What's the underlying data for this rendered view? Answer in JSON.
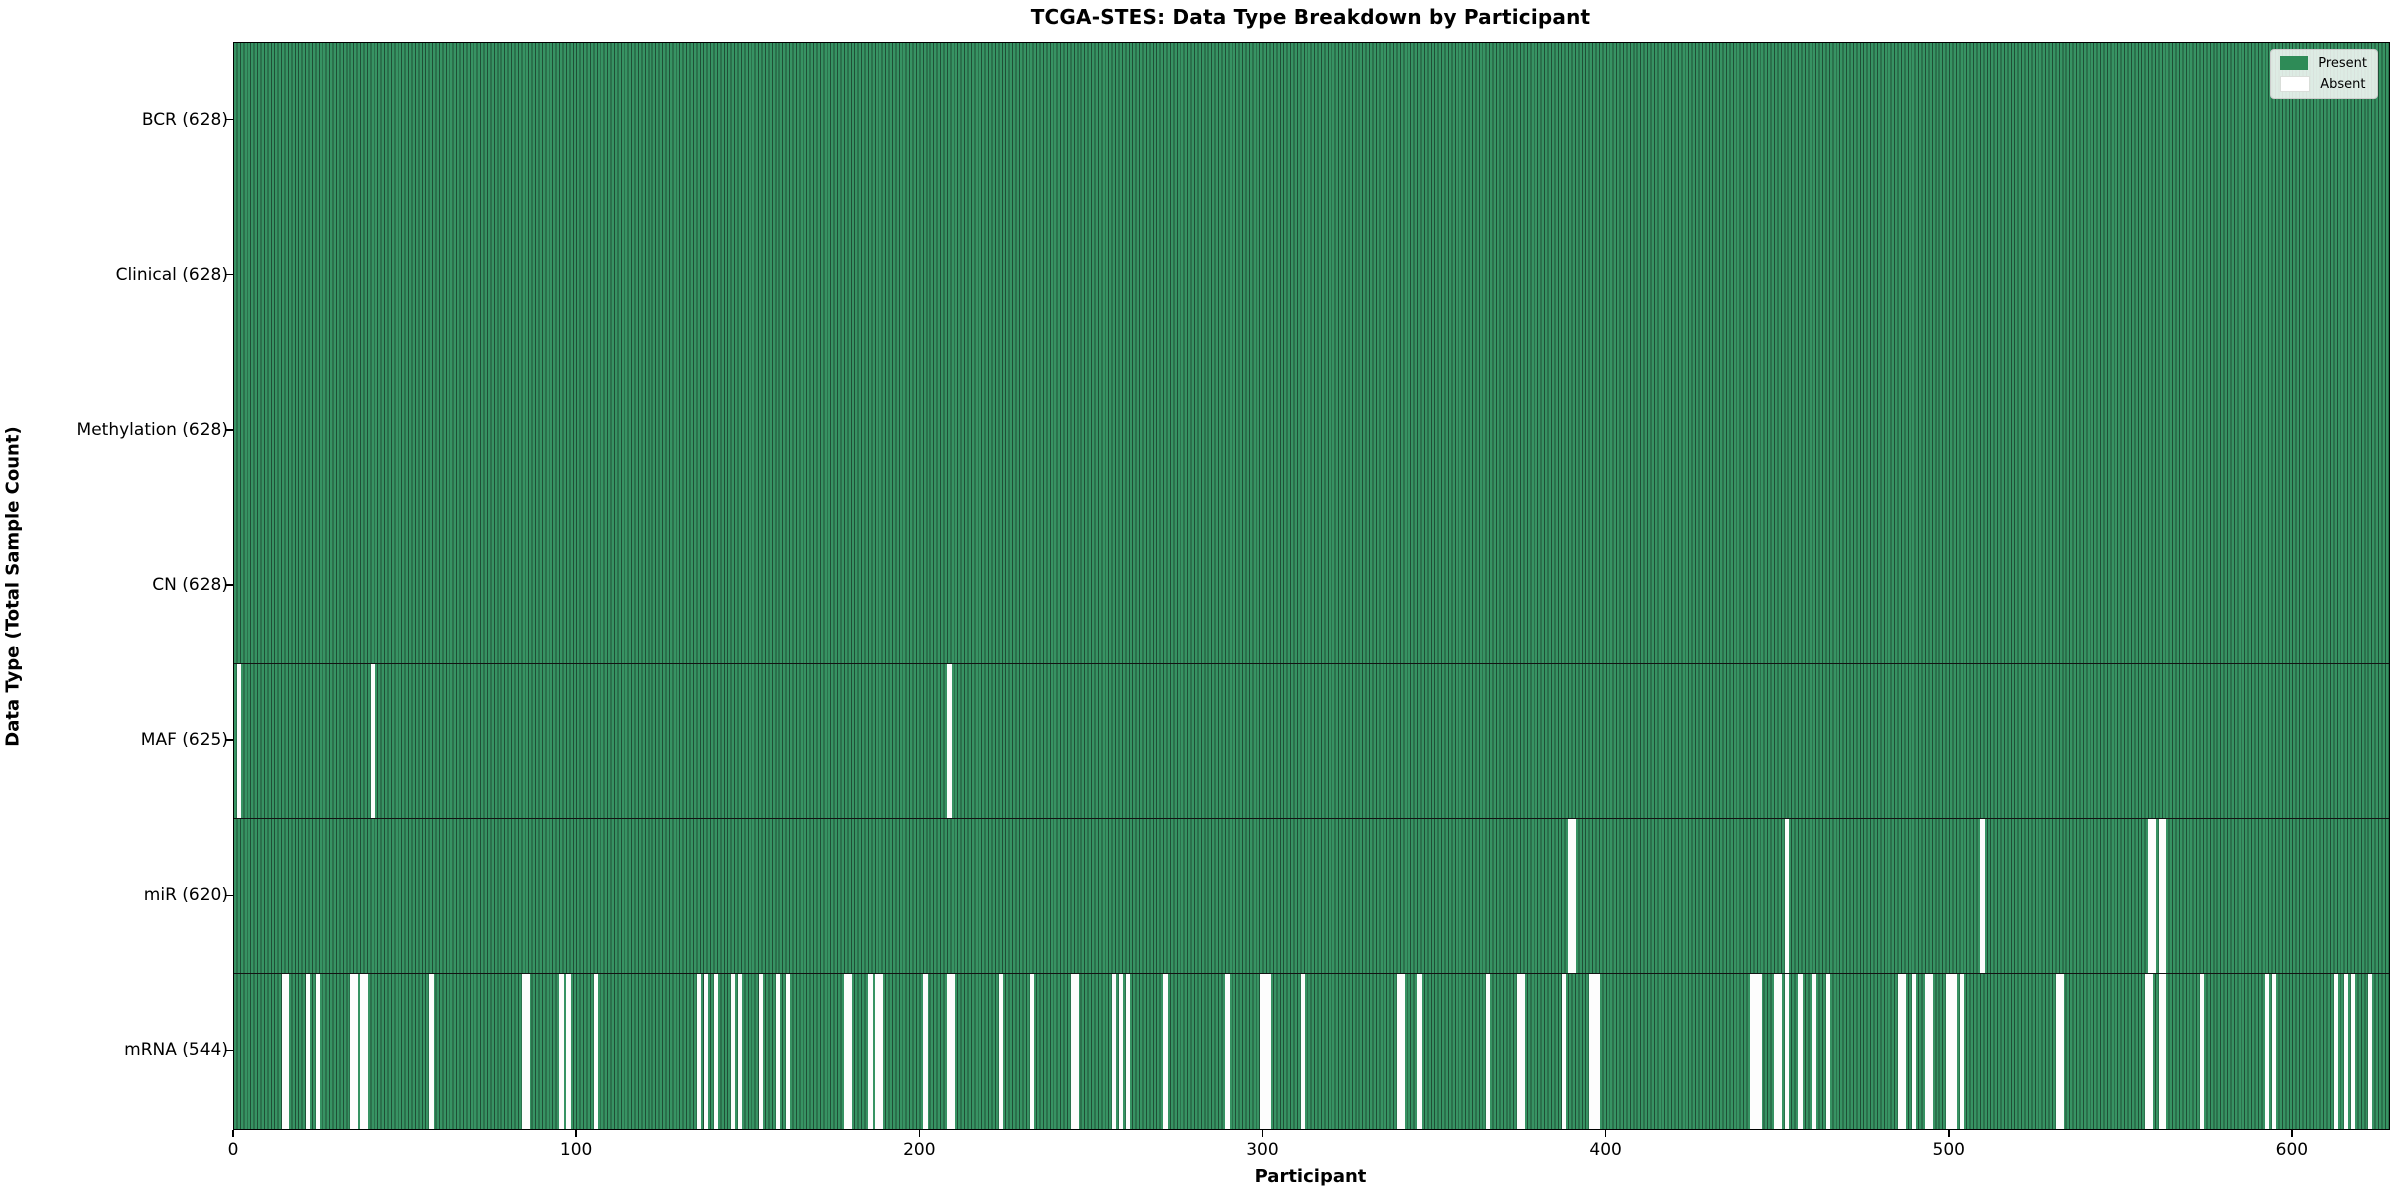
{
  "chart_data": {
    "type": "heatmap",
    "title": "TCGA-STES: Data Type Breakdown by Participant",
    "xlabel": "Participant",
    "ylabel": "Data Type (Total Sample Count)",
    "x_ticks": [
      0,
      100,
      200,
      300,
      400,
      500,
      600
    ],
    "x_max": 628,
    "grid": false,
    "legend": {
      "position": "upper right",
      "entries": [
        {
          "label": "Present",
          "color": "#2e8b57"
        },
        {
          "label": "Absent",
          "color": "#ffffff"
        }
      ]
    },
    "colors": {
      "present_fill": "#379363",
      "present_edge": "#1f4f36",
      "absent": "#fdfdfd",
      "row_divider": "#131313"
    },
    "rows": [
      {
        "label": "BCR (628)",
        "name": "BCR",
        "present_count": 628,
        "absent_ranges": []
      },
      {
        "label": "Clinical (628)",
        "name": "Clinical",
        "present_count": 628,
        "absent_ranges": []
      },
      {
        "label": "Methylation (628)",
        "name": "Methylation",
        "present_count": 628,
        "absent_ranges": []
      },
      {
        "label": "CN (628)",
        "name": "CN",
        "present_count": 628,
        "absent_ranges": []
      },
      {
        "label": "MAF (625)",
        "name": "MAF",
        "present_count": 625,
        "absent_ranges": [
          [
            1,
            1
          ],
          [
            40,
            1
          ],
          [
            208,
            1
          ]
        ]
      },
      {
        "label": "miR (620)",
        "name": "miR",
        "present_count": 620,
        "absent_ranges": [
          [
            389,
            2
          ],
          [
            452,
            1
          ],
          [
            509,
            1
          ],
          [
            558,
            2
          ],
          [
            561,
            2
          ]
        ]
      },
      {
        "label": "mRNA (544)",
        "name": "mRNA",
        "present_count": 544,
        "absent_ranges": [
          [
            14,
            2
          ],
          [
            21,
            1
          ],
          [
            24,
            1
          ],
          [
            34,
            2
          ],
          [
            37,
            2
          ],
          [
            57,
            1
          ],
          [
            84,
            2
          ],
          [
            95,
            1
          ],
          [
            97,
            1
          ],
          [
            105,
            1
          ],
          [
            135,
            1
          ],
          [
            137,
            1
          ],
          [
            140,
            1
          ],
          [
            145,
            1
          ],
          [
            147,
            1
          ],
          [
            153,
            1
          ],
          [
            158,
            1
          ],
          [
            161,
            1
          ],
          [
            178,
            2
          ],
          [
            185,
            1
          ],
          [
            187,
            2
          ],
          [
            201,
            1
          ],
          [
            208,
            2
          ],
          [
            223,
            1
          ],
          [
            232,
            1
          ],
          [
            244,
            2
          ],
          [
            256,
            1
          ],
          [
            258,
            1
          ],
          [
            260,
            1
          ],
          [
            271,
            1
          ],
          [
            289,
            1
          ],
          [
            299,
            2
          ],
          [
            301,
            1
          ],
          [
            311,
            1
          ],
          [
            339,
            2
          ],
          [
            345,
            1
          ],
          [
            365,
            1
          ],
          [
            374,
            2
          ],
          [
            387,
            1
          ],
          [
            395,
            2
          ],
          [
            397,
            1
          ],
          [
            442,
            2
          ],
          [
            444,
            1
          ],
          [
            449,
            2
          ],
          [
            452,
            1
          ],
          [
            456,
            1
          ],
          [
            460,
            1
          ],
          [
            464,
            1
          ],
          [
            485,
            2
          ],
          [
            489,
            1
          ],
          [
            493,
            2
          ],
          [
            499,
            2
          ],
          [
            501,
            1
          ],
          [
            503,
            1
          ],
          [
            531,
            2
          ],
          [
            557,
            2
          ],
          [
            561,
            2
          ],
          [
            573,
            1
          ],
          [
            592,
            1
          ],
          [
            594,
            1
          ],
          [
            612,
            1
          ],
          [
            615,
            1
          ],
          [
            617,
            1
          ],
          [
            622,
            1
          ]
        ]
      }
    ]
  }
}
